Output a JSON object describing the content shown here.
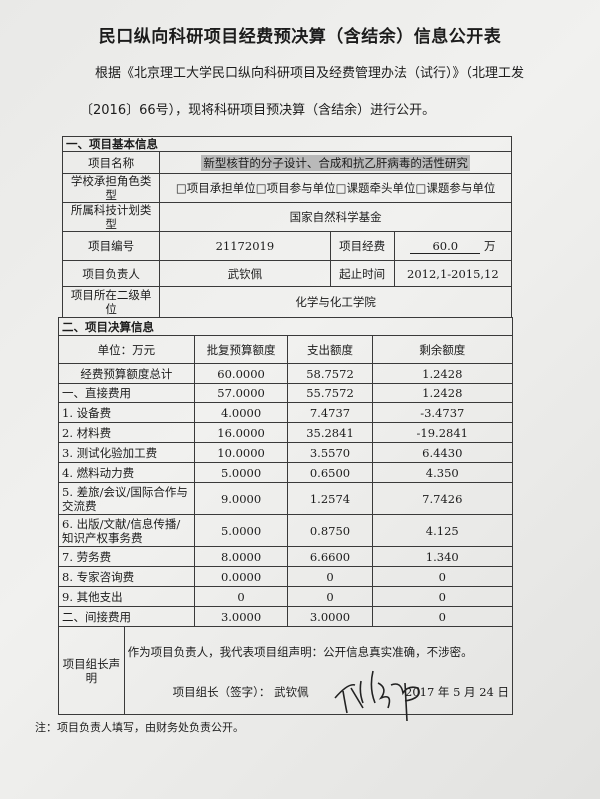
{
  "title": "民口纵向科研项目经费预决算（含结余）信息公开表",
  "intro_line1": "根据《北京理工大学民口纵向科研项目及经费管理办法（试行）》（北理工发",
  "intro_line2": "〔2016〕66号），现将科研项目预决算（含结余）进行公开。",
  "section1": {
    "header": "一、项目基本信息",
    "name_label": "项目名称",
    "name_value": "新型核苷的分子设计、合成和抗乙肝病毒的活性研究",
    "role_label": "学校承担角色类型",
    "role_options": [
      "□项目承担单位",
      "□项目参与单位",
      "□课题牵头单位",
      "□课题参与单位"
    ],
    "plan_label": "所属科技计划类型",
    "plan_value": "国家自然科学基金",
    "number_label": "项目编号",
    "number_value": "21172019",
    "funding_label": "项目经费",
    "funding_value": "60.0",
    "funding_unit": "万",
    "leader_label": "项目负责人",
    "leader_value": "武钦佩",
    "period_label": "起止时间",
    "period_value": "2012,1-2015,12",
    "dept_label": "项目所在二级单位",
    "dept_value": "化学与化工学院"
  },
  "section2": {
    "header": "二、项目决算信息",
    "columns": [
      "单位：万元",
      "批复预算额度",
      "支出额度",
      "剩余额度"
    ],
    "rows": [
      [
        "经费预算额度总计",
        "60.0000",
        "58.7572",
        "1.2428"
      ],
      [
        "一、直接费用",
        "57.0000",
        "55.7572",
        "1.2428"
      ],
      [
        "1. 设备费",
        "4.0000",
        "7.4737",
        "-3.4737"
      ],
      [
        "2. 材料费",
        "16.0000",
        "35.2841",
        "-19.2841"
      ],
      [
        "3. 测试化验加工费",
        "10.0000",
        "3.5570",
        "6.4430"
      ],
      [
        "4. 燃料动力费",
        "5.0000",
        "0.6500",
        "4.350"
      ],
      [
        "5. 差旅/会议/国际合作与交流费",
        "9.0000",
        "1.2574",
        "7.7426"
      ],
      [
        "6. 出版/文献/信息传播/知识产权事务费",
        "5.0000",
        "0.8750",
        "4.125"
      ],
      [
        "7. 劳务费",
        "8.0000",
        "6.6600",
        "1.340"
      ],
      [
        "8. 专家咨询费",
        "0.0000",
        "0",
        "0"
      ],
      [
        "9. 其他支出",
        "0",
        "0",
        "0"
      ],
      [
        "二、间接费用",
        "3.0000",
        "3.0000",
        "0"
      ]
    ]
  },
  "statement": {
    "label": "项目组长声明",
    "text": "作为项目负责人，我代表项目组声明：公开信息真实准确，不涉密。",
    "sign_label": "项目组长（签字）：",
    "sign_name": "武钦佩",
    "date": "2017 年 5 月 24 日"
  },
  "note": "注：项目负责人填写，由财务处负责公开。"
}
